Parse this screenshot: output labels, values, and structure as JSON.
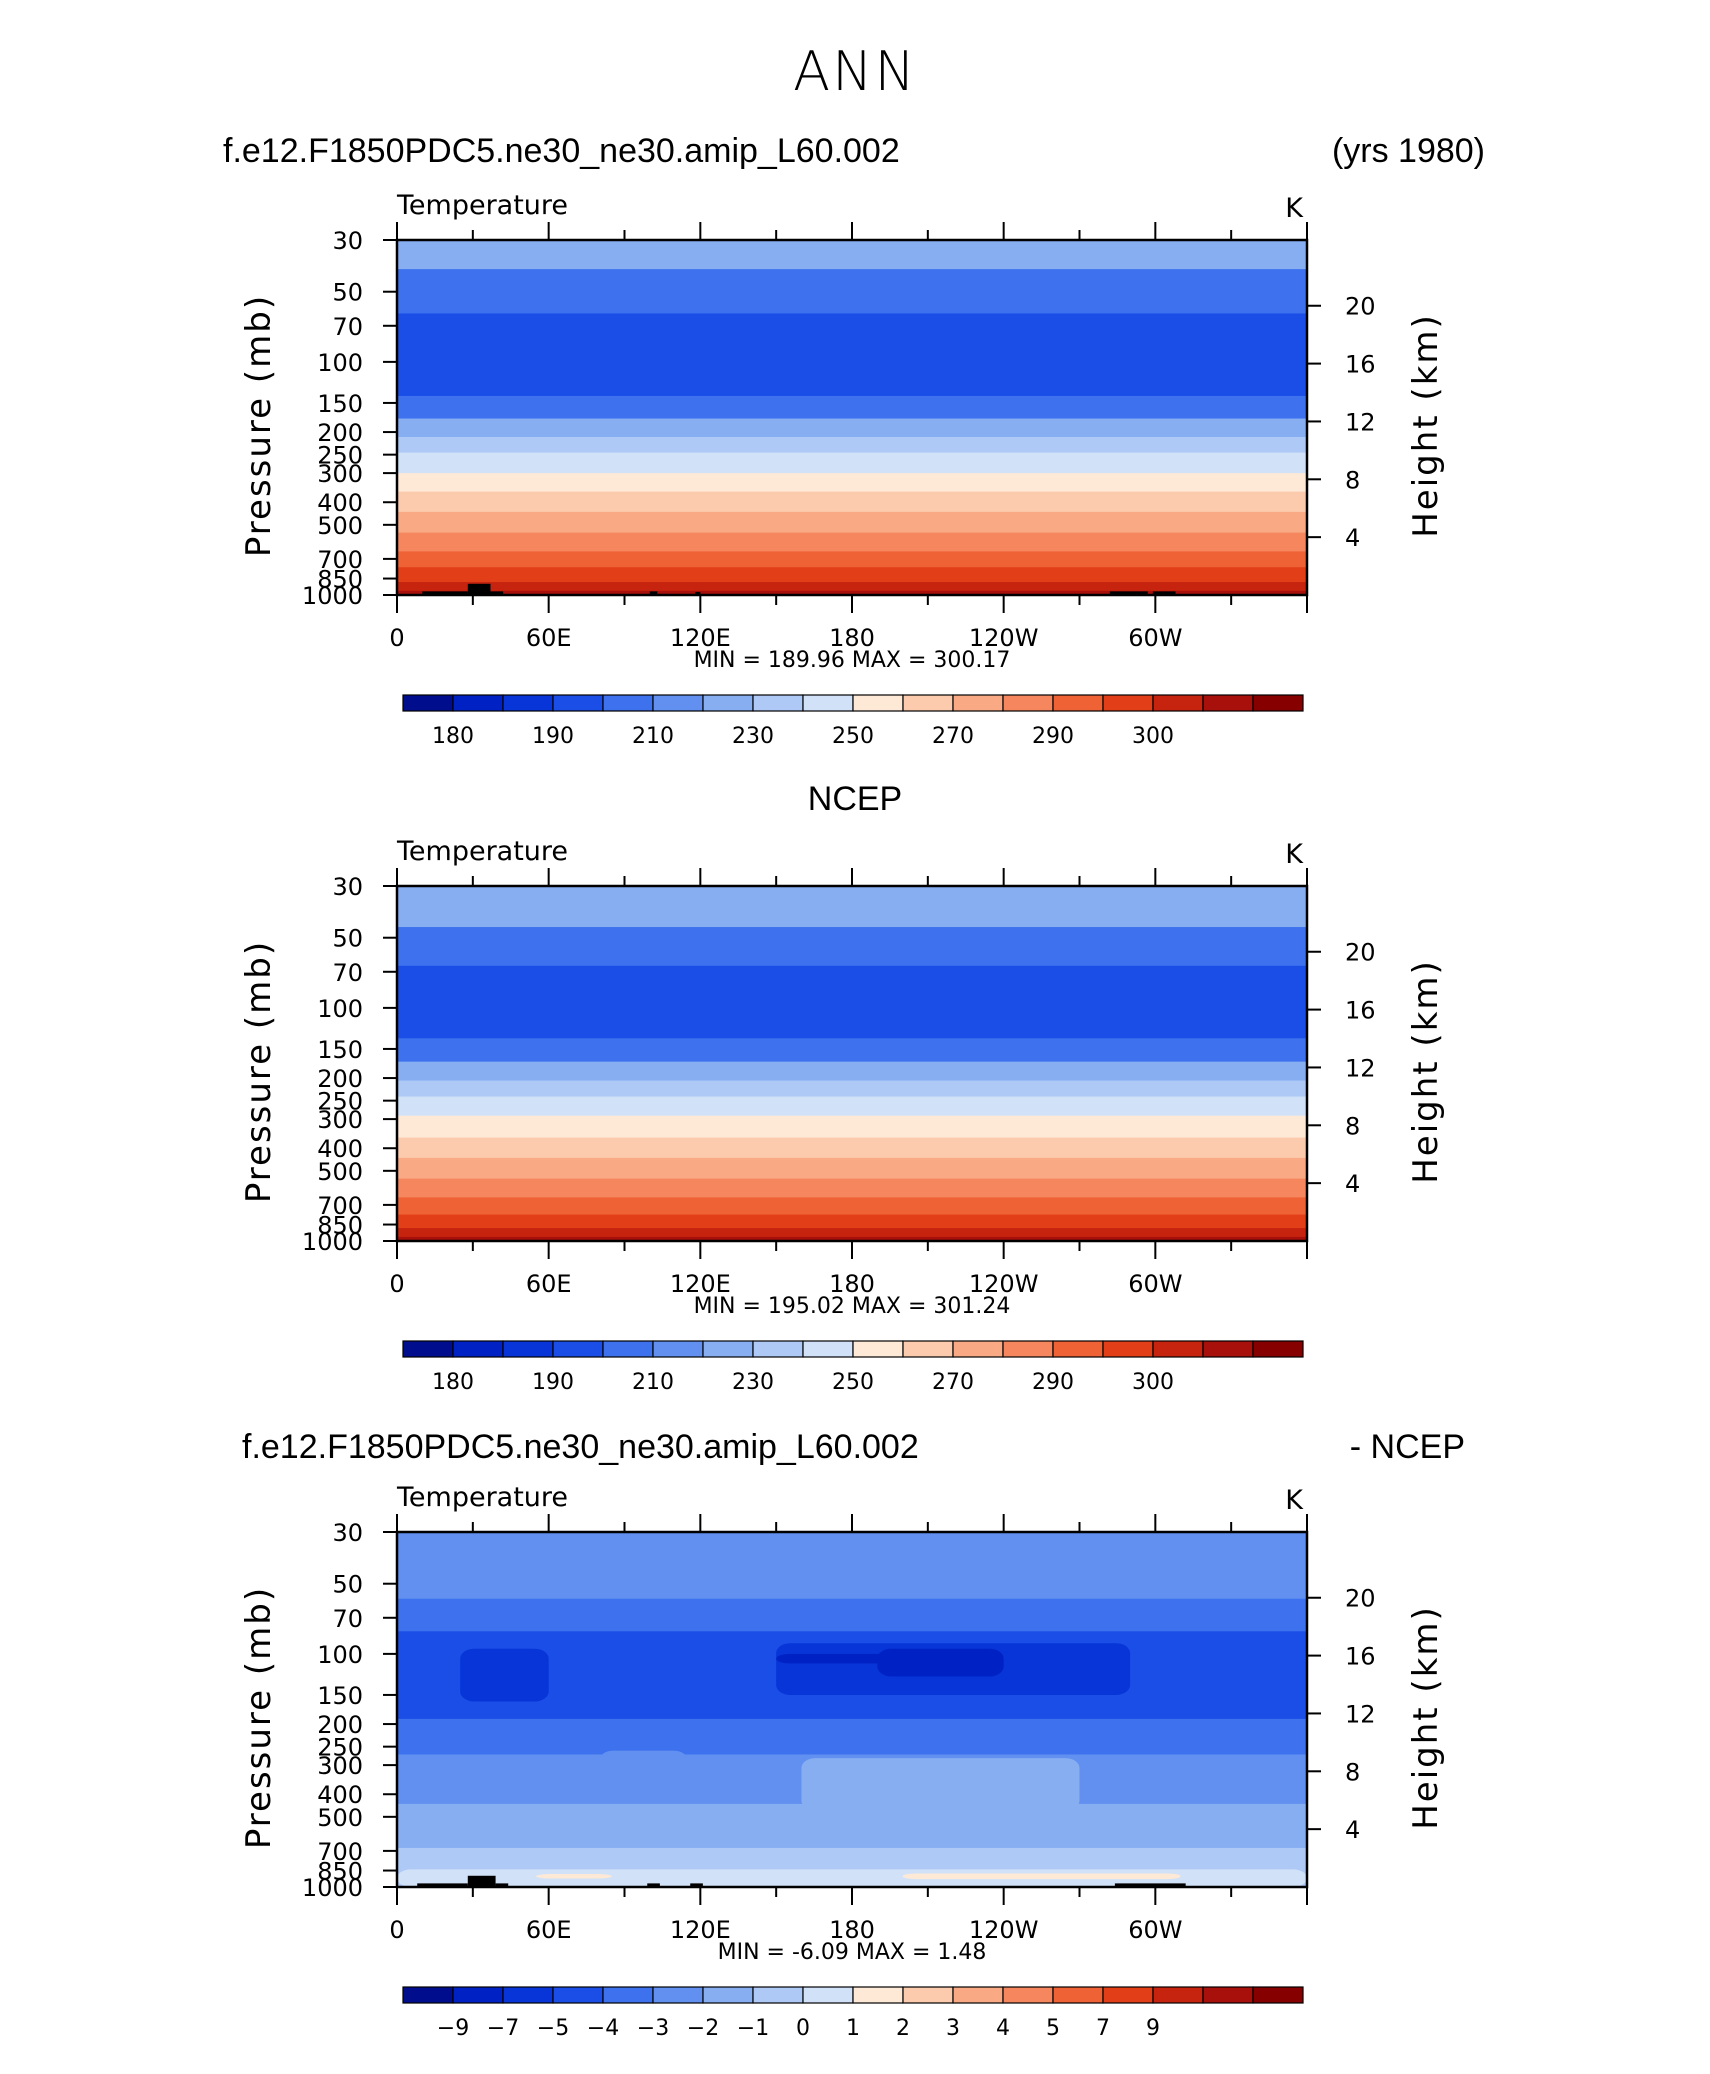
{
  "page_title": "ANN",
  "palettes": {
    "temperature": [
      "#000e8e",
      "#0022c4",
      "#0735d8",
      "#1a4ee6",
      "#3d71ed",
      "#6190f0",
      "#88aef2",
      "#aec9f5",
      "#d1e2f8",
      "#fde9d6",
      "#fccbae",
      "#faa985",
      "#f5865e",
      "#ef6236",
      "#e23f19",
      "#c72410",
      "#a8100b",
      "#870000"
    ],
    "difference": [
      "#000e8e",
      "#0022c4",
      "#0735d8",
      "#1a4ee6",
      "#3d71ed",
      "#6190f0",
      "#88aef2",
      "#aec9f5",
      "#d1e2f8",
      "#fde9d6",
      "#fccbae",
      "#faa985",
      "#f5865e",
      "#ef6236",
      "#e23f19",
      "#c72410",
      "#a8100b",
      "#870000"
    ]
  },
  "chart_data": [
    {
      "type": "heatmap",
      "header_left": "f.e12.F1850PDC5.ne30_ne30.amip_L60.002",
      "header_right": "(yrs 1980)",
      "title": "Temperature",
      "units": "K",
      "ylabel": "Pressure  (mb)",
      "ylabel_right": "Height  (km)",
      "yticks": [
        "30",
        "50",
        "70",
        "100",
        "150",
        "200",
        "250",
        "300",
        "400",
        "500",
        "700",
        "850",
        "1000"
      ],
      "yticks_right": [
        "20",
        "16",
        "12",
        "8",
        "4"
      ],
      "xticks": [
        "0",
        "60E",
        "120E",
        "180",
        "120W",
        "60W"
      ],
      "stats": "MIN =  189.96   MAX =  300.17",
      "colorbar_labels": [
        "180",
        "190",
        "210",
        "230",
        "250",
        "270",
        "290",
        "300"
      ],
      "bands": [
        {
          "p_top": 30,
          "p_bot": 40,
          "level": 6
        },
        {
          "p_top": 40,
          "p_bot": 62,
          "level": 4
        },
        {
          "p_top": 62,
          "p_bot": 140,
          "level": 3
        },
        {
          "p_top": 140,
          "p_bot": 175,
          "level": 4
        },
        {
          "p_top": 175,
          "p_bot": 210,
          "level": 6
        },
        {
          "p_top": 210,
          "p_bot": 245,
          "level": 7
        },
        {
          "p_top": 245,
          "p_bot": 300,
          "level": 8
        },
        {
          "p_top": 300,
          "p_bot": 360,
          "level": 9
        },
        {
          "p_top": 360,
          "p_bot": 440,
          "level": 10
        },
        {
          "p_top": 440,
          "p_bot": 540,
          "level": 11
        },
        {
          "p_top": 540,
          "p_bot": 650,
          "level": 12
        },
        {
          "p_top": 650,
          "p_bot": 760,
          "level": 13
        },
        {
          "p_top": 760,
          "p_bot": 880,
          "level": 14
        },
        {
          "p_top": 880,
          "p_bot": 960,
          "level": 15
        },
        {
          "p_top": 960,
          "p_bot": 1000,
          "level": 16
        }
      ],
      "terrain": [
        {
          "lon_start": 10,
          "lon_end": 28,
          "p_top": 965
        },
        {
          "lon_start": 28,
          "lon_end": 37,
          "p_top": 895
        },
        {
          "lon_start": 37,
          "lon_end": 42,
          "p_top": 965
        },
        {
          "lon_start": 100,
          "lon_end": 103,
          "p_top": 965
        },
        {
          "lon_start": 118,
          "lon_end": 120,
          "p_top": 970
        },
        {
          "lon_start": 282,
          "lon_end": 297,
          "p_top": 965
        },
        {
          "lon_start": 299,
          "lon_end": 308,
          "p_top": 965
        }
      ]
    },
    {
      "type": "heatmap",
      "header_center": "NCEP",
      "title": "Temperature",
      "units": "K",
      "ylabel": "Pressure  (mb)",
      "ylabel_right": "Height  (km)",
      "yticks": [
        "30",
        "50",
        "70",
        "100",
        "150",
        "200",
        "250",
        "300",
        "400",
        "500",
        "700",
        "850",
        "1000"
      ],
      "yticks_right": [
        "20",
        "16",
        "12",
        "8",
        "4"
      ],
      "xticks": [
        "0",
        "60E",
        "120E",
        "180",
        "120W",
        "60W"
      ],
      "stats": "MIN =  195.02   MAX =  301.24",
      "colorbar_labels": [
        "180",
        "190",
        "210",
        "230",
        "250",
        "270",
        "290",
        "300"
      ],
      "bands": [
        {
          "p_top": 30,
          "p_bot": 45,
          "level": 6
        },
        {
          "p_top": 45,
          "p_bot": 66,
          "level": 4
        },
        {
          "p_top": 66,
          "p_bot": 135,
          "level": 3
        },
        {
          "p_top": 135,
          "p_bot": 170,
          "level": 4
        },
        {
          "p_top": 170,
          "p_bot": 205,
          "level": 6
        },
        {
          "p_top": 205,
          "p_bot": 240,
          "level": 7
        },
        {
          "p_top": 240,
          "p_bot": 290,
          "level": 8
        },
        {
          "p_top": 290,
          "p_bot": 360,
          "level": 9
        },
        {
          "p_top": 360,
          "p_bot": 440,
          "level": 10
        },
        {
          "p_top": 440,
          "p_bot": 540,
          "level": 11
        },
        {
          "p_top": 540,
          "p_bot": 650,
          "level": 12
        },
        {
          "p_top": 650,
          "p_bot": 770,
          "level": 13
        },
        {
          "p_top": 770,
          "p_bot": 880,
          "level": 14
        },
        {
          "p_top": 880,
          "p_bot": 960,
          "level": 15
        },
        {
          "p_top": 960,
          "p_bot": 1000,
          "level": 16
        }
      ],
      "terrain": []
    },
    {
      "type": "heatmap",
      "header_left": "f.e12.F1850PDC5.ne30_ne30.amip_L60.002",
      "header_right": "- NCEP",
      "title": "Temperature",
      "units": "K",
      "ylabel": "Pressure  (mb)",
      "ylabel_right": "Height  (km)",
      "yticks": [
        "30",
        "50",
        "70",
        "100",
        "150",
        "200",
        "250",
        "300",
        "400",
        "500",
        "700",
        "850",
        "1000"
      ],
      "yticks_right": [
        "20",
        "16",
        "12",
        "8",
        "4"
      ],
      "xticks": [
        "0",
        "60E",
        "120E",
        "180",
        "120W",
        "60W"
      ],
      "stats": "MIN =    -6.09   MAX =     1.48",
      "colorbar_labels": [
        "−9",
        "−7",
        "−5",
        "−4",
        "−3",
        "−2",
        "−1",
        "0",
        "1",
        "2",
        "3",
        "4",
        "5",
        "7",
        "9"
      ],
      "bands": [
        {
          "p_top": 30,
          "p_bot": 58,
          "level": 5
        },
        {
          "p_top": 58,
          "p_bot": 80,
          "level": 4
        },
        {
          "p_top": 80,
          "p_bot": 190,
          "level": 3
        },
        {
          "p_top": 190,
          "p_bot": 270,
          "level": 4
        },
        {
          "p_top": 270,
          "p_bot": 440,
          "level": 5
        },
        {
          "p_top": 440,
          "p_bot": 680,
          "level": 6
        },
        {
          "p_top": 680,
          "p_bot": 1000,
          "level": 7
        }
      ],
      "blobs": [
        {
          "lon_start": 25,
          "lon_end": 60,
          "p_top": 95,
          "p_bot": 160,
          "level": 2
        },
        {
          "lon_start": 150,
          "lon_end": 290,
          "p_top": 90,
          "p_bot": 150,
          "level": 2
        },
        {
          "lon_start": 150,
          "lon_end": 240,
          "p_top": 100,
          "p_bot": 110,
          "level": 1
        },
        {
          "lon_start": 190,
          "lon_end": 240,
          "p_top": 95,
          "p_bot": 125,
          "level": 1
        },
        {
          "lon_start": 80,
          "lon_end": 115,
          "p_top": 260,
          "p_bot": 430,
          "level": 5
        },
        {
          "lon_start": 160,
          "lon_end": 270,
          "p_top": 280,
          "p_bot": 470,
          "level": 6
        },
        {
          "lon_start": 10,
          "lon_end": 46,
          "p_top": 510,
          "p_bot": 560,
          "level": 6
        },
        {
          "lon_start": 0,
          "lon_end": 360,
          "p_top": 840,
          "p_bot": 1000,
          "level": 8
        },
        {
          "lon_start": 55,
          "lon_end": 85,
          "p_top": 880,
          "p_bot": 920,
          "level": 9
        },
        {
          "lon_start": 200,
          "lon_end": 310,
          "p_top": 875,
          "p_bot": 925,
          "level": 9
        }
      ],
      "terrain": [
        {
          "lon_start": 8,
          "lon_end": 28,
          "p_top": 965
        },
        {
          "lon_start": 28,
          "lon_end": 39,
          "p_top": 895
        },
        {
          "lon_start": 39,
          "lon_end": 44,
          "p_top": 965
        },
        {
          "lon_start": 99,
          "lon_end": 104,
          "p_top": 965
        },
        {
          "lon_start": 116,
          "lon_end": 121,
          "p_top": 965
        },
        {
          "lon_start": 284,
          "lon_end": 312,
          "p_top": 965
        }
      ]
    }
  ]
}
